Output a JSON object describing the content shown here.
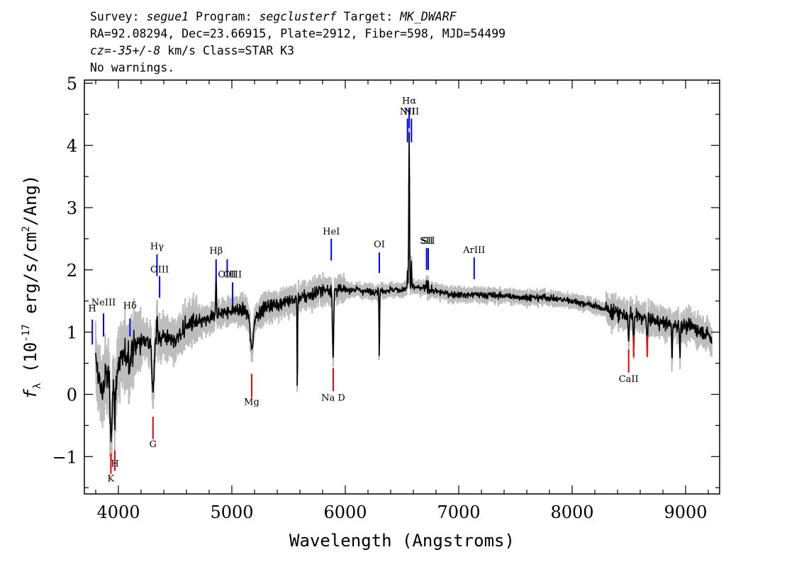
{
  "header": {
    "line1": {
      "survey_label": "Survey: ",
      "survey": "segue1",
      "program_label": " Program: ",
      "program": "segclusterf",
      "target_label": " Target: ",
      "target": "MK_DWARF"
    },
    "line2": "RA=92.08294, Dec=23.66915, Plate=2912, Fiber=598, MJD=54499",
    "line3": {
      "cz": "cz=-35+/-8",
      "rest": " km/s Class=STAR K3"
    },
    "line4": "No warnings."
  },
  "chart_data": {
    "type": "line",
    "xlabel": "Wavelength (Angstroms)",
    "ylabel_parts": {
      "symbol": "f",
      "symbol_sub": "λ",
      "unit_open": " (10",
      "exponent": "-17",
      "unit_mid": " erg/s/cm",
      "unit_sq": "2",
      "unit_close": "/Ang)"
    },
    "xlim": [
      3700,
      9300
    ],
    "ylim": [
      -1.6,
      5.05
    ],
    "xticks": [
      4000,
      5000,
      6000,
      7000,
      8000,
      9000
    ],
    "yticks": [
      -1,
      0,
      1,
      2,
      3,
      4,
      5
    ],
    "grid": false,
    "colors": {
      "flux": "#000000",
      "error": "#bdbdbd",
      "emission": "#0000ff",
      "absorption": "#ff0000"
    },
    "flux_anchors": [
      [
        3800,
        0.5
      ],
      [
        3850,
        0.05
      ],
      [
        3900,
        0.3
      ],
      [
        3950,
        0.2
      ],
      [
        4000,
        0.45
      ],
      [
        4100,
        0.75
      ],
      [
        4200,
        0.85
      ],
      [
        4300,
        0.9
      ],
      [
        4400,
        0.95
      ],
      [
        4500,
        0.85
      ],
      [
        4600,
        1.1
      ],
      [
        4700,
        1.15
      ],
      [
        4800,
        1.2
      ],
      [
        4900,
        1.3
      ],
      [
        5000,
        1.35
      ],
      [
        5100,
        1.35
      ],
      [
        5200,
        1.25
      ],
      [
        5300,
        1.4
      ],
      [
        5400,
        1.45
      ],
      [
        5500,
        1.5
      ],
      [
        5600,
        1.55
      ],
      [
        5700,
        1.6
      ],
      [
        5800,
        1.68
      ],
      [
        5900,
        1.68
      ],
      [
        6000,
        1.68
      ],
      [
        6100,
        1.68
      ],
      [
        6200,
        1.65
      ],
      [
        6300,
        1.66
      ],
      [
        6400,
        1.68
      ],
      [
        6500,
        1.68
      ],
      [
        6600,
        1.72
      ],
      [
        6700,
        1.7
      ],
      [
        6800,
        1.65
      ],
      [
        6900,
        1.62
      ],
      [
        7000,
        1.6
      ],
      [
        7200,
        1.6
      ],
      [
        7400,
        1.58
      ],
      [
        7600,
        1.56
      ],
      [
        7800,
        1.55
      ],
      [
        8000,
        1.5
      ],
      [
        8200,
        1.42
      ],
      [
        8400,
        1.3
      ],
      [
        8600,
        1.25
      ],
      [
        8800,
        1.15
      ],
      [
        9000,
        1.1
      ],
      [
        9100,
        1.05
      ],
      [
        9200,
        0.95
      ],
      [
        9230,
        0.85
      ]
    ],
    "features": [
      [
        3934,
        -0.9,
        20
      ],
      [
        3969,
        -0.6,
        15
      ],
      [
        4101,
        -0.3,
        18
      ],
      [
        4305,
        -0.8,
        25
      ],
      [
        4340,
        0.3,
        8
      ],
      [
        4861,
        0.7,
        8
      ],
      [
        5175,
        -0.55,
        30
      ],
      [
        5577,
        -1.5,
        6
      ],
      [
        5893,
        -1.1,
        12
      ],
      [
        6300,
        -1.1,
        6
      ],
      [
        6563,
        2.5,
        8
      ],
      [
        6548,
        0.3,
        5
      ],
      [
        6583,
        0.5,
        5
      ],
      [
        6716,
        0.15,
        6
      ],
      [
        6731,
        0.15,
        6
      ],
      [
        8498,
        -0.4,
        10
      ],
      [
        8542,
        -0.45,
        10
      ],
      [
        8662,
        -0.45,
        10
      ],
      [
        8880,
        -0.6,
        8
      ],
      [
        8950,
        -0.4,
        8
      ]
    ],
    "emission_lines": [
      {
        "label": "H",
        "wave": 3770,
        "y1": 0.8,
        "y2": 1.2,
        "label_y": 1.33
      },
      {
        "label": "NeIII",
        "wave": 3869,
        "y1": 0.93,
        "y2": 1.3,
        "label_y": 1.43
      },
      {
        "label": "Hδ",
        "wave": 4102,
        "y1": 0.93,
        "y2": 1.22,
        "label_y": 1.38
      },
      {
        "label": "Hγ",
        "wave": 4340,
        "y1": 1.9,
        "y2": 2.25,
        "label_y": 2.33
      },
      {
        "label": "OIII",
        "wave": 4363,
        "y1": 1.55,
        "y2": 1.9,
        "label_y": 1.96
      },
      {
        "label": "Hβ",
        "wave": 4861,
        "y1": 1.82,
        "y2": 2.17,
        "label_y": 2.26
      },
      {
        "label": "OIII",
        "wave": 4959,
        "y1": 1.9,
        "y2": 2.17,
        "label_y": 1.88
      },
      {
        "label": "OIII",
        "wave": 5007,
        "y1": 1.45,
        "y2": 1.8,
        "label_y": 1.88
      },
      {
        "label": "HeI",
        "wave": 5876,
        "y1": 2.15,
        "y2": 2.5,
        "label_y": 2.57
      },
      {
        "label": "OI",
        "wave": 6300,
        "y1": 1.95,
        "y2": 2.28,
        "label_y": 2.36
      },
      {
        "label": "NII",
        "wave": 6548,
        "y1": 4.05,
        "y2": 4.43,
        "label_y": 4.5
      },
      {
        "label": "Hα",
        "wave": 6563,
        "y1": 4.28,
        "y2": 4.6,
        "label_y": 4.67
      },
      {
        "label": "NII",
        "wave": 6583,
        "y1": 4.05,
        "y2": 4.43,
        "label_y": 4.5
      },
      {
        "label": "SII",
        "wave": 6716,
        "y1": 2.0,
        "y2": 2.35,
        "label_y": 2.42
      },
      {
        "label": "SII",
        "wave": 6731,
        "y1": 2.0,
        "y2": 2.35,
        "label_y": 2.42
      },
      {
        "label": "ArIII",
        "wave": 7136,
        "y1": 1.85,
        "y2": 2.2,
        "label_y": 2.27
      }
    ],
    "absorption_lines": [
      {
        "label": "K",
        "wave": 3934,
        "y1": -1.28,
        "y2": -0.95,
        "label_y": -1.4
      },
      {
        "label": "H",
        "wave": 3969,
        "y1": -1.23,
        "y2": -0.9,
        "label_y": -1.16
      },
      {
        "label": "G",
        "wave": 4305,
        "y1": -0.72,
        "y2": -0.36,
        "label_y": -0.85
      },
      {
        "label": "Mg",
        "wave": 5175,
        "y1": -0.05,
        "y2": 0.33,
        "label_y": -0.17
      },
      {
        "label": "Na D",
        "wave": 5894,
        "y1": 0.05,
        "y2": 0.42,
        "label_y": -0.1
      },
      {
        "label": "CaII",
        "wave": 8498,
        "y1": 0.35,
        "y2": 0.72,
        "label_y": 0.2
      },
      {
        "label": "",
        "wave": 8542,
        "y1": 0.6,
        "y2": 0.95,
        "label_y": 0
      },
      {
        "label": "",
        "wave": 8662,
        "y1": 0.6,
        "y2": 0.95,
        "label_y": 0
      }
    ]
  }
}
